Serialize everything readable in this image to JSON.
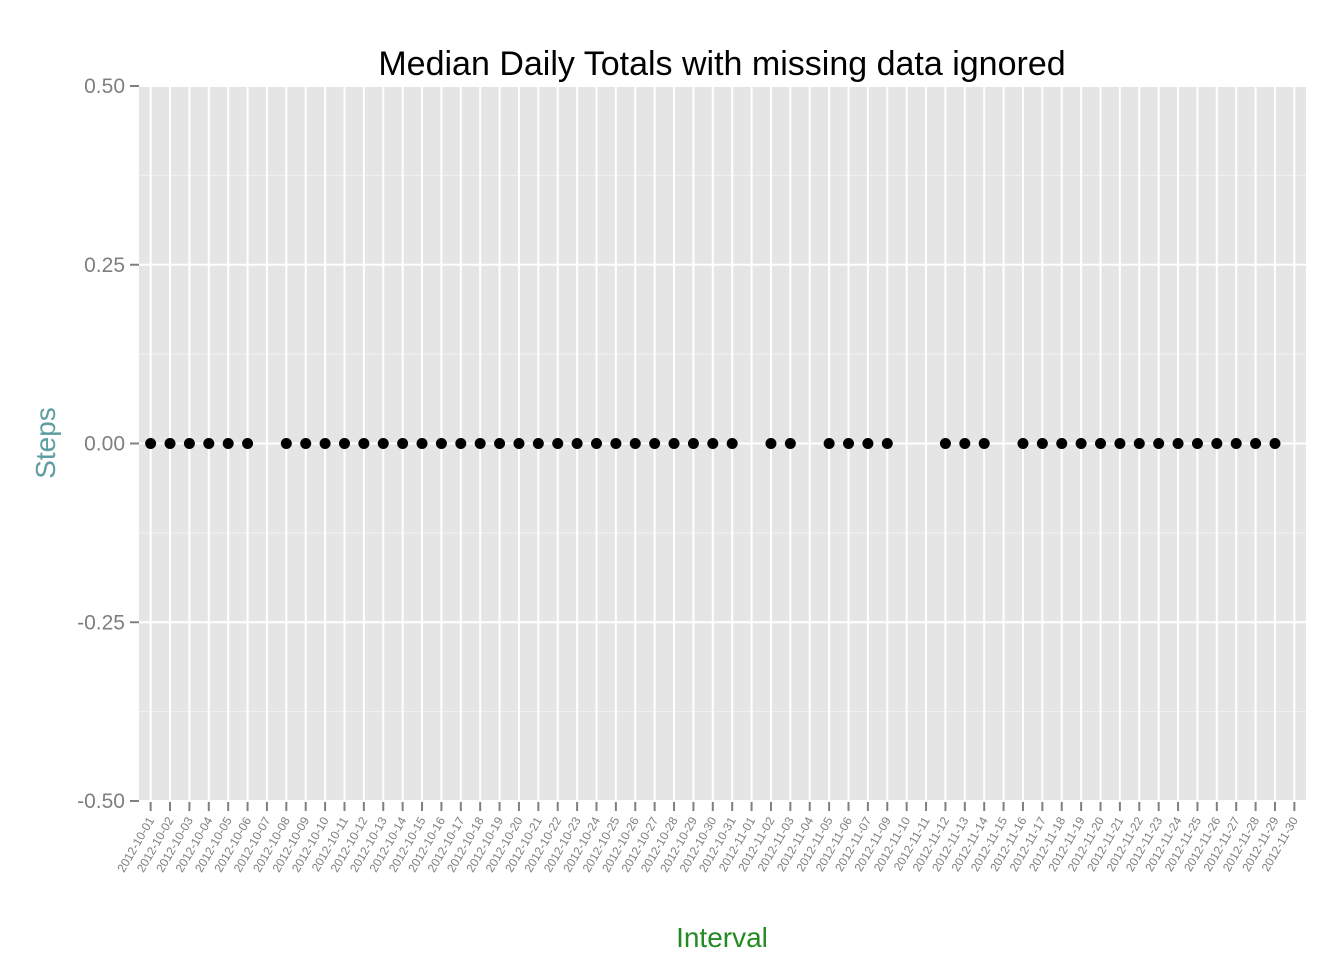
{
  "chart_data": {
    "type": "scatter",
    "title": "Median Daily Totals with missing data ignored",
    "xlabel": "Interval",
    "ylabel": "Steps",
    "ylim": [
      -0.5,
      0.5
    ],
    "yticks": [
      "-0.50",
      "-0.25",
      "0.00",
      "0.25",
      "0.50"
    ],
    "grid": true,
    "colors": {
      "panel": "#e5e5e5",
      "grid_major": "#ffffff",
      "grid_minor": "#f2f2f2",
      "point": "#000000",
      "xlabel": "#228b22",
      "ylabel": "#5f9ea0",
      "tick_text": "#7f7f7f"
    },
    "categories": [
      "2012-10-01",
      "2012-10-02",
      "2012-10-03",
      "2012-10-04",
      "2012-10-05",
      "2012-10-06",
      "2012-10-07",
      "2012-10-08",
      "2012-10-09",
      "2012-10-10",
      "2012-10-11",
      "2012-10-12",
      "2012-10-13",
      "2012-10-14",
      "2012-10-15",
      "2012-10-16",
      "2012-10-17",
      "2012-10-18",
      "2012-10-19",
      "2012-10-20",
      "2012-10-21",
      "2012-10-22",
      "2012-10-23",
      "2012-10-24",
      "2012-10-25",
      "2012-10-26",
      "2012-10-27",
      "2012-10-28",
      "2012-10-29",
      "2012-10-30",
      "2012-10-31",
      "2012-11-01",
      "2012-11-02",
      "2012-11-03",
      "2012-11-04",
      "2012-11-05",
      "2012-11-06",
      "2012-11-07",
      "2012-11-09",
      "2012-11-10",
      "2012-11-11",
      "2012-11-12",
      "2012-11-13",
      "2012-11-14",
      "2012-11-15",
      "2012-11-16",
      "2012-11-17",
      "2012-11-18",
      "2012-11-19",
      "2012-11-20",
      "2012-11-21",
      "2012-11-22",
      "2012-11-23",
      "2012-11-24",
      "2012-11-25",
      "2012-11-26",
      "2012-11-27",
      "2012-11-28",
      "2012-11-29",
      "2012-11-30"
    ],
    "values": [
      0,
      0,
      0,
      0,
      0,
      0,
      null,
      0,
      0,
      0,
      0,
      0,
      0,
      0,
      0,
      0,
      0,
      0,
      0,
      0,
      0,
      0,
      0,
      0,
      0,
      0,
      0,
      0,
      0,
      0,
      0,
      null,
      0,
      0,
      null,
      0,
      0,
      0,
      0,
      null,
      null,
      0,
      0,
      0,
      null,
      0,
      0,
      0,
      0,
      0,
      0,
      0,
      0,
      0,
      0,
      0,
      0,
      0,
      0,
      null
    ]
  }
}
